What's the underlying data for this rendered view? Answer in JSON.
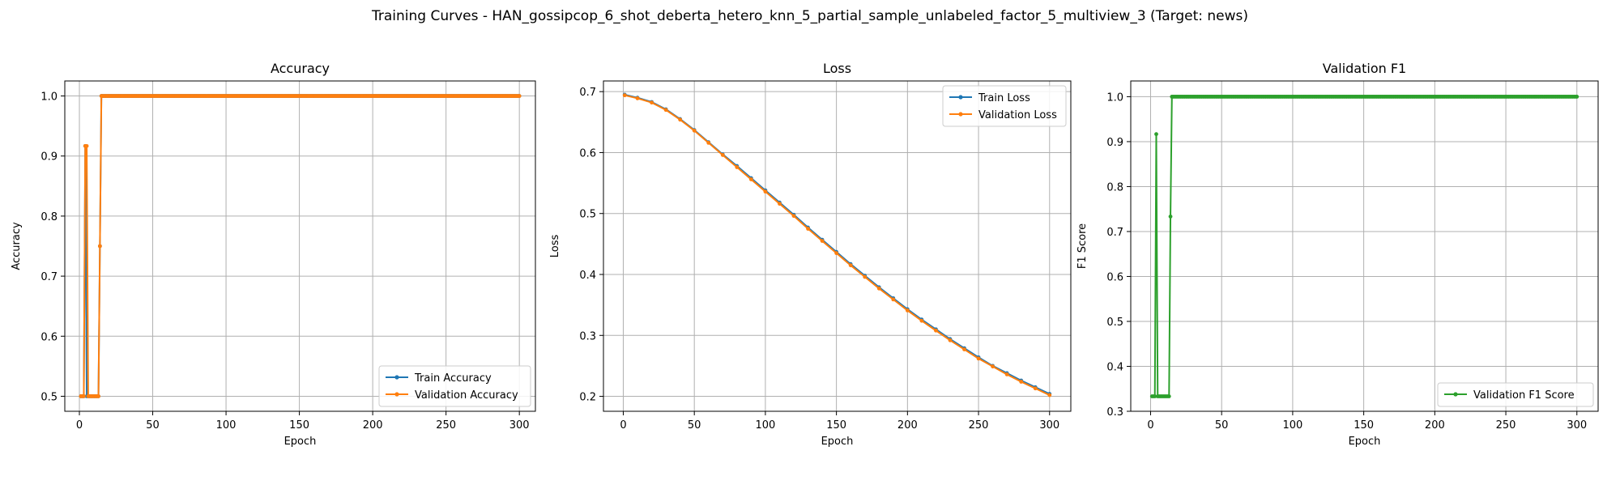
{
  "figure": {
    "title": "Training Curves - HAN_gossipcop_6_shot_deberta_hetero_knn_5_partial_sample_unlabeled_factor_5_multiview_3 (Target: news)"
  },
  "colors": {
    "train": "#1f77b4",
    "validation": "#ff7f0e",
    "f1": "#2ca02c",
    "grid": "#b0b0b0"
  },
  "chart_data": [
    {
      "type": "line",
      "title": "Accuracy",
      "xlabel": "Epoch",
      "ylabel": "Accuracy",
      "xlim": [
        -9.95,
        310.95
      ],
      "ylim": [
        0.475,
        1.025
      ],
      "xticks": [
        0,
        50,
        100,
        150,
        200,
        250,
        300
      ],
      "yticks": [
        0.5,
        0.6,
        0.7,
        0.8,
        0.9,
        1.0
      ],
      "grid": true,
      "legend_position": "lower-right",
      "series": [
        {
          "name": "Train Accuracy",
          "color": "#1f77b4",
          "segments": [
            {
              "x_start": 1,
              "x_end": 3,
              "value": 0.5
            },
            {
              "x_start": 4,
              "x_end": 4,
              "value": 0.9167
            },
            {
              "x_start": 5,
              "x_end": 13,
              "value": 0.5
            },
            {
              "x_start": 14,
              "x_end": 14,
              "value": 0.75
            },
            {
              "x_start": 15,
              "x_end": 300,
              "value": 1.0
            }
          ]
        },
        {
          "name": "Validation Accuracy",
          "color": "#ff7f0e",
          "segments": [
            {
              "x_start": 1,
              "x_end": 3,
              "value": 0.5
            },
            {
              "x_start": 4,
              "x_end": 5,
              "value": 0.9167
            },
            {
              "x_start": 6,
              "x_end": 13,
              "value": 0.5
            },
            {
              "x_start": 14,
              "x_end": 14,
              "value": 0.75
            },
            {
              "x_start": 15,
              "x_end": 300,
              "value": 1.0
            }
          ]
        }
      ]
    },
    {
      "type": "line",
      "title": "Loss",
      "xlabel": "Epoch",
      "ylabel": "Loss",
      "xlim": [
        -13.95,
        314.95
      ],
      "ylim": [
        0.1755,
        0.7175
      ],
      "xticks": [
        0,
        50,
        100,
        150,
        200,
        250,
        300
      ],
      "yticks": [
        0.2,
        0.3,
        0.4,
        0.5,
        0.6,
        0.7
      ],
      "grid": true,
      "legend_position": "top-right",
      "series": [
        {
          "name": "Train Loss",
          "color": "#1f77b4",
          "points": [
            [
              1,
              0.695
            ],
            [
              10,
              0.69
            ],
            [
              20,
              0.683
            ],
            [
              30,
              0.671
            ],
            [
              40,
              0.655
            ],
            [
              50,
              0.637
            ],
            [
              60,
              0.617
            ],
            [
              70,
              0.597
            ],
            [
              80,
              0.578
            ],
            [
              90,
              0.558
            ],
            [
              100,
              0.538
            ],
            [
              110,
              0.518
            ],
            [
              120,
              0.498
            ],
            [
              130,
              0.477
            ],
            [
              140,
              0.457
            ],
            [
              150,
              0.437
            ],
            [
              160,
              0.417
            ],
            [
              170,
              0.398
            ],
            [
              180,
              0.379
            ],
            [
              190,
              0.361
            ],
            [
              200,
              0.343
            ],
            [
              210,
              0.326
            ],
            [
              220,
              0.31
            ],
            [
              230,
              0.294
            ],
            [
              240,
              0.279
            ],
            [
              250,
              0.264
            ],
            [
              260,
              0.25
            ],
            [
              270,
              0.238
            ],
            [
              280,
              0.226
            ],
            [
              290,
              0.215
            ],
            [
              300,
              0.204
            ]
          ]
        },
        {
          "name": "Validation Loss",
          "color": "#ff7f0e",
          "points": [
            [
              1,
              0.694
            ],
            [
              10,
              0.689
            ],
            [
              20,
              0.682
            ],
            [
              30,
              0.67
            ],
            [
              40,
              0.654
            ],
            [
              50,
              0.636
            ],
            [
              60,
              0.616
            ],
            [
              70,
              0.596
            ],
            [
              80,
              0.576
            ],
            [
              90,
              0.556
            ],
            [
              100,
              0.536
            ],
            [
              110,
              0.516
            ],
            [
              120,
              0.496
            ],
            [
              130,
              0.475
            ],
            [
              140,
              0.455
            ],
            [
              150,
              0.435
            ],
            [
              160,
              0.415
            ],
            [
              170,
              0.396
            ],
            [
              180,
              0.377
            ],
            [
              190,
              0.359
            ],
            [
              200,
              0.341
            ],
            [
              210,
              0.324
            ],
            [
              220,
              0.308
            ],
            [
              230,
              0.292
            ],
            [
              240,
              0.277
            ],
            [
              250,
              0.262
            ],
            [
              260,
              0.249
            ],
            [
              270,
              0.236
            ],
            [
              280,
              0.224
            ],
            [
              290,
              0.213
            ],
            [
              300,
              0.202
            ]
          ]
        }
      ]
    },
    {
      "type": "line",
      "title": "Validation F1",
      "xlabel": "Epoch",
      "ylabel": "F1 Score",
      "xlim": [
        -13.95,
        314.95
      ],
      "ylim": [
        0.3,
        1.035
      ],
      "xticks": [
        0,
        50,
        100,
        150,
        200,
        250,
        300
      ],
      "yticks": [
        0.3,
        0.4,
        0.5,
        0.6,
        0.7,
        0.8,
        0.9,
        1.0
      ],
      "grid": true,
      "legend_position": "lower-right",
      "series": [
        {
          "name": "Validation F1 Score",
          "color": "#2ca02c",
          "segments": [
            {
              "x_start": 1,
              "x_end": 3,
              "value": 0.3333
            },
            {
              "x_start": 4,
              "x_end": 4,
              "value": 0.9167
            },
            {
              "x_start": 5,
              "x_end": 13,
              "value": 0.3333
            },
            {
              "x_start": 14,
              "x_end": 14,
              "value": 0.7333
            },
            {
              "x_start": 15,
              "x_end": 300,
              "value": 1.0
            }
          ]
        }
      ]
    }
  ]
}
